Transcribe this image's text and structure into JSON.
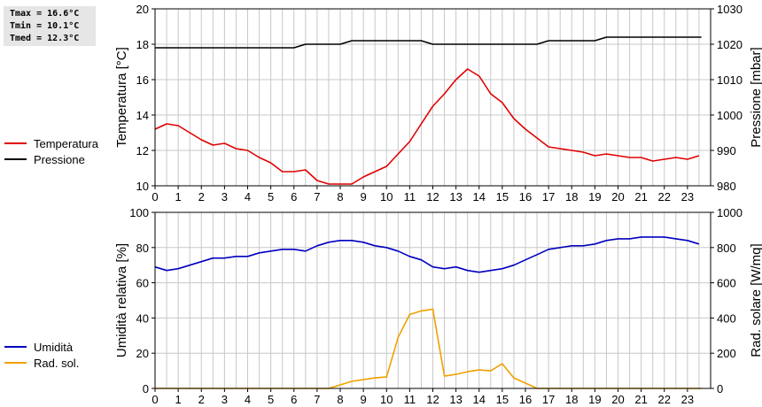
{
  "stats": {
    "tmax": "Tmax = 16.6°C",
    "tmin": "Tmin = 10.1°C",
    "tmed": "Tmed = 12.3°C"
  },
  "colors": {
    "temperatura": "#e00000",
    "pressione": "#000000",
    "umidita": "#0000c0",
    "rad_sol": "#f0a000",
    "grid": "#c8c8c8",
    "frame": "#000000",
    "stats_bg": "#e6e6e6"
  },
  "chart_data": [
    {
      "type": "line",
      "x_ticks": [
        "0",
        "1",
        "2",
        "3",
        "4",
        "5",
        "6",
        "7",
        "8",
        "9",
        "10",
        "11",
        "12",
        "13",
        "14",
        "15",
        "16",
        "17",
        "18",
        "19",
        "20",
        "21",
        "22",
        "23"
      ],
      "xlim": [
        0,
        24
      ],
      "ylabel": "Temperatura [°C]",
      "ylabel2": "Pressione [mbar]",
      "ylim": [
        10,
        20
      ],
      "y_ticks": [
        "10",
        "12",
        "14",
        "16",
        "18",
        "20"
      ],
      "ylim2": [
        980,
        1030
      ],
      "y2_ticks": [
        "980",
        "990",
        "1000",
        "1010",
        "1020",
        "1030"
      ],
      "grid": true,
      "legend_position": "left",
      "series": [
        {
          "name": "Temperatura",
          "axis": "left",
          "x": [
            0,
            0.5,
            1,
            1.5,
            2,
            2.5,
            3,
            3.5,
            4,
            4.5,
            5,
            5.5,
            6,
            6.5,
            7,
            7.5,
            8,
            8.5,
            9,
            9.5,
            10,
            10.5,
            11,
            11.5,
            12,
            12.5,
            13,
            13.5,
            14,
            14.5,
            15,
            15.5,
            16,
            16.5,
            17,
            17.5,
            18,
            18.5,
            19,
            19.5,
            20,
            20.5,
            21,
            21.5,
            22,
            22.5,
            23,
            23.5
          ],
          "y": [
            13.2,
            13.5,
            13.4,
            13.0,
            12.6,
            12.3,
            12.4,
            12.1,
            12.0,
            11.6,
            11.3,
            10.8,
            10.8,
            10.9,
            10.3,
            10.1,
            10.1,
            10.1,
            10.5,
            10.8,
            11.1,
            11.8,
            12.5,
            13.5,
            14.5,
            15.2,
            16.0,
            16.6,
            16.2,
            15.2,
            14.7,
            13.8,
            13.2,
            12.7,
            12.2,
            12.1,
            12.0,
            11.9,
            11.7,
            11.8,
            11.7,
            11.6,
            11.6,
            11.4,
            11.5,
            11.6,
            11.5,
            11.7
          ]
        },
        {
          "name": "Pressione",
          "axis": "right",
          "x": [
            0,
            1,
            2,
            3,
            4,
            5,
            6,
            6.5,
            7,
            7.5,
            8,
            8.5,
            9,
            10,
            11,
            11.5,
            12,
            13,
            14,
            15,
            16,
            16.5,
            17,
            18,
            19,
            19.5,
            20,
            21,
            22,
            23,
            23.6
          ],
          "y": [
            1019,
            1019,
            1019,
            1019,
            1019,
            1019,
            1019,
            1020,
            1020,
            1020,
            1020,
            1021,
            1021,
            1021,
            1021,
            1021,
            1020,
            1020,
            1020,
            1020,
            1020,
            1020,
            1021,
            1021,
            1021,
            1022,
            1022,
            1022,
            1022,
            1022,
            1022
          ]
        }
      ]
    },
    {
      "type": "line",
      "x_ticks": [
        "0",
        "1",
        "2",
        "3",
        "4",
        "5",
        "6",
        "7",
        "8",
        "9",
        "10",
        "11",
        "12",
        "13",
        "14",
        "15",
        "16",
        "17",
        "18",
        "19",
        "20",
        "21",
        "22",
        "23"
      ],
      "xlim": [
        0,
        24
      ],
      "ylabel": "Umidità relativa [%]",
      "ylabel2": "Rad. solare [W/mq]",
      "ylim": [
        0,
        100
      ],
      "y_ticks": [
        "0",
        "20",
        "40",
        "60",
        "80",
        "100"
      ],
      "ylim2": [
        0,
        1000
      ],
      "y2_ticks": [
        "0",
        "200",
        "400",
        "600",
        "800",
        "1000"
      ],
      "grid": true,
      "legend_position": "left",
      "series": [
        {
          "name": "Umidità",
          "axis": "left",
          "x": [
            0,
            0.5,
            1,
            1.5,
            2,
            2.5,
            3,
            3.5,
            4,
            4.5,
            5,
            5.5,
            6,
            6.5,
            7,
            7.5,
            8,
            8.5,
            9,
            9.5,
            10,
            10.5,
            11,
            11.5,
            12,
            12.5,
            13,
            13.5,
            14,
            14.5,
            15,
            15.5,
            16,
            16.5,
            17,
            17.5,
            18,
            18.5,
            19,
            19.5,
            20,
            20.5,
            21,
            21.5,
            22,
            22.5,
            23,
            23.5
          ],
          "y": [
            69,
            67,
            68,
            70,
            72,
            74,
            74,
            75,
            75,
            77,
            78,
            79,
            79,
            78,
            81,
            83,
            84,
            84,
            83,
            81,
            80,
            78,
            75,
            73,
            69,
            68,
            69,
            67,
            66,
            67,
            68,
            70,
            73,
            76,
            79,
            80,
            81,
            81,
            82,
            84,
            85,
            85,
            86,
            86,
            86,
            85,
            84,
            82
          ]
        },
        {
          "name": "Rad. sol.",
          "axis": "right",
          "x": [
            0,
            1,
            2,
            3,
            4,
            5,
            6,
            7,
            7.5,
            8,
            8.5,
            9,
            9.5,
            10,
            10.5,
            11,
            11.5,
            12,
            12.5,
            13,
            13.5,
            14,
            14.5,
            15,
            15.5,
            16,
            16.5,
            17,
            18,
            19,
            20,
            21,
            22,
            23,
            23.6
          ],
          "y": [
            0,
            0,
            0,
            0,
            0,
            0,
            0,
            0,
            0,
            20,
            40,
            50,
            60,
            65,
            290,
            420,
            440,
            450,
            70,
            80,
            95,
            105,
            100,
            140,
            60,
            30,
            0,
            0,
            0,
            0,
            0,
            0,
            0,
            0,
            0
          ]
        }
      ]
    }
  ]
}
